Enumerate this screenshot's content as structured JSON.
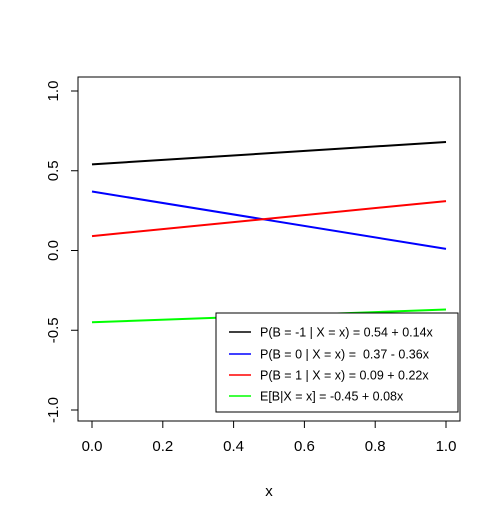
{
  "chart_data": {
    "type": "line",
    "title": "",
    "xlabel": "x",
    "ylabel": "",
    "xlim": [
      0,
      1
    ],
    "ylim": [
      -1,
      1
    ],
    "xticks": [
      "0.0",
      "0.2",
      "0.4",
      "0.6",
      "0.8",
      "1.0"
    ],
    "yticks": [
      "-1.0",
      "-0.5",
      "0.0",
      "0.5",
      "1.0"
    ],
    "grid": false,
    "legend_position": "bottom-right",
    "series": [
      {
        "name": "P(B = -1 | X = x) = 0.54 + 0.14x",
        "color": "#000000",
        "x": [
          0,
          1
        ],
        "y": [
          0.54,
          0.68
        ]
      },
      {
        "name": "P(B = 0 | X = x) =  0.37 - 0.36x",
        "color": "#0000ff",
        "x": [
          0,
          1
        ],
        "y": [
          0.37,
          0.01
        ]
      },
      {
        "name": "P(B = 1 | X = x) = 0.09 + 0.22x",
        "color": "#ff0000",
        "x": [
          0,
          1
        ],
        "y": [
          0.09,
          0.31
        ]
      },
      {
        "name": "E[B|X = x] = -0.45 + 0.08x",
        "color": "#00ff00",
        "x": [
          0,
          1
        ],
        "y": [
          -0.45,
          -0.37
        ]
      }
    ]
  }
}
